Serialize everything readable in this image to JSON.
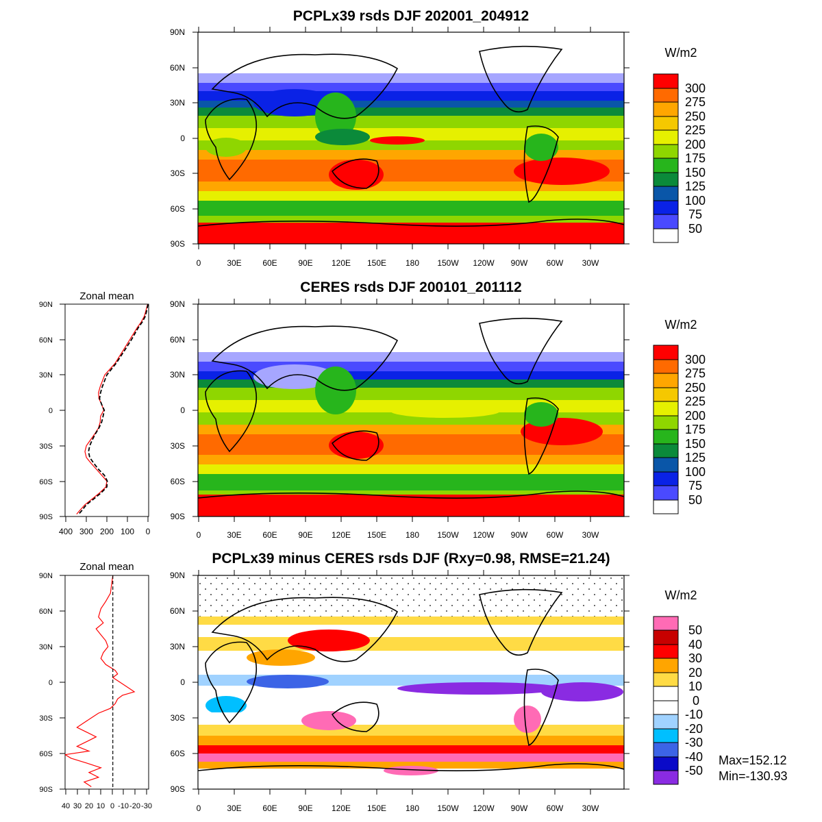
{
  "palettes": {
    "absolute": [
      "#ffffff",
      "#a6a6ff",
      "#4a4aff",
      "#0a22e6",
      "#0a56a8",
      "#0b8a3a",
      "#27b51c",
      "#8fd600",
      "#e6f000",
      "#f5c800",
      "#ffa600",
      "#ff6a00",
      "#ff0000"
    ],
    "difference": [
      "#8a2be2",
      "#0a0ac8",
      "#3c64e6",
      "#00bfff",
      "#a0d2ff",
      "#ffffff",
      "#ffffff",
      "#ffdb45",
      "#ffa500",
      "#ff0000",
      "#c80000",
      "#ff6bb5"
    ],
    "zonal_model": "#ff0000",
    "zonal_obs": "#000000"
  },
  "chart_data": [
    {
      "type": "heatmap",
      "title": "PCPLx39 rsds DJF 202001_204912",
      "x_tick_labels": [
        "0",
        "30E",
        "60E",
        "90E",
        "120E",
        "150E",
        "180",
        "150W",
        "120W",
        "90W",
        "60W",
        "30W"
      ],
      "y_tick_labels": [
        "90N",
        "60N",
        "30N",
        "0",
        "30S",
        "60S",
        "90S"
      ],
      "xlim": [
        0,
        360
      ],
      "ylim": [
        -90,
        90
      ],
      "colorbar_unit": "W/m2",
      "colorbar_labels": [
        "300",
        "275",
        "250",
        "225",
        "200",
        "175",
        "150",
        "125",
        "100",
        "75",
        "50"
      ],
      "colorbar_levels": [
        50,
        75,
        100,
        125,
        150,
        175,
        200,
        225,
        250,
        275,
        300
      ],
      "zonal_mean_profile": {
        "lat": [
          90,
          75,
          60,
          50,
          40,
          30,
          20,
          10,
          0,
          -10,
          -20,
          -30,
          -40,
          -50,
          -60,
          -70,
          -80,
          -88
        ],
        "values": [
          2,
          30,
          80,
          115,
          165,
          210,
          230,
          245,
          215,
          240,
          265,
          295,
          295,
          250,
          205,
          245,
          300,
          340
        ]
      }
    },
    {
      "type": "heatmap",
      "title": "CERES rsds DJF 200101_201112",
      "x_tick_labels": [
        "0",
        "30E",
        "60E",
        "90E",
        "120E",
        "150E",
        "180",
        "150W",
        "120W",
        "90W",
        "60W",
        "30W"
      ],
      "y_tick_labels": [
        "90N",
        "60N",
        "30N",
        "0",
        "30S",
        "60S",
        "90S"
      ],
      "xlim": [
        0,
        360
      ],
      "ylim": [
        -90,
        90
      ],
      "colorbar_unit": "W/m2",
      "colorbar_labels": [
        "300",
        "275",
        "250",
        "225",
        "200",
        "175",
        "150",
        "125",
        "100",
        "75",
        "50"
      ],
      "colorbar_levels": [
        50,
        75,
        100,
        125,
        150,
        175,
        200,
        225,
        250,
        275,
        300
      ],
      "zonal_mean_profile": {
        "lat": [
          90,
          75,
          60,
          50,
          40,
          30,
          20,
          10,
          0,
          -10,
          -20,
          -30,
          -40,
          -50,
          -60,
          -70,
          -80,
          -88
        ],
        "values": [
          2,
          25,
          70,
          110,
          155,
          200,
          222,
          240,
          210,
          230,
          260,
          280,
          285,
          240,
          200,
          240,
          290,
          325
        ]
      }
    },
    {
      "type": "line",
      "title": "Zonal mean",
      "x_tick_labels": [
        "400",
        "300",
        "200",
        "100",
        "0"
      ],
      "y_tick_labels": [
        "90N",
        "60N",
        "30N",
        "0",
        "30S",
        "60S",
        "90S"
      ],
      "xlim": [
        400,
        0
      ],
      "ylim": [
        -90,
        90
      ],
      "series": [
        {
          "y": [
            90,
            80,
            75,
            70,
            60,
            50,
            40,
            30,
            20,
            15,
            10,
            5,
            0,
            -5,
            -10,
            -15,
            -20,
            -25,
            -30,
            -35,
            -40,
            -45,
            -50,
            -55,
            -60,
            -65,
            -70,
            -75,
            -80,
            -85,
            -88
          ],
          "x": [
            5,
            20,
            35,
            55,
            90,
            125,
            160,
            210,
            232,
            240,
            238,
            225,
            215,
            230,
            232,
            240,
            258,
            278,
            298,
            305,
            298,
            275,
            250,
            225,
            200,
            205,
            235,
            270,
            305,
            330,
            345
          ]
        },
        {
          "y": [
            90,
            80,
            75,
            70,
            60,
            50,
            40,
            30,
            20,
            15,
            10,
            5,
            0,
            -5,
            -10,
            -15,
            -20,
            -25,
            -30,
            -35,
            -40,
            -45,
            -50,
            -55,
            -60,
            -65,
            -70,
            -75,
            -80,
            -85,
            -88
          ],
          "x": [
            3,
            15,
            30,
            50,
            82,
            118,
            155,
            200,
            222,
            230,
            235,
            225,
            212,
            218,
            225,
            238,
            255,
            270,
            282,
            288,
            282,
            262,
            240,
            212,
            198,
            200,
            228,
            262,
            298,
            320,
            335
          ]
        }
      ]
    },
    {
      "type": "heatmap",
      "title": "PCPLx39 minus CERES rsds DJF (Rxy=0.98, RMSE=21.24)",
      "x_tick_labels": [
        "0",
        "30E",
        "60E",
        "90E",
        "120E",
        "150E",
        "180",
        "150W",
        "120W",
        "90W",
        "60W",
        "30W"
      ],
      "y_tick_labels": [
        "90N",
        "60N",
        "30N",
        "0",
        "30S",
        "60S",
        "90S"
      ],
      "xlim": [
        0,
        360
      ],
      "ylim": [
        -90,
        90
      ],
      "colorbar_unit": "W/m2",
      "colorbar_labels": [
        "50",
        "40",
        "30",
        "20",
        "10",
        "0",
        "-10",
        "-20",
        "-30",
        "-40",
        "-50"
      ],
      "colorbar_levels": [
        -50,
        -40,
        -30,
        -20,
        -10,
        0,
        10,
        20,
        30,
        40,
        50
      ],
      "max_label": "Max=152.12",
      "min_label": "Min=-130.93"
    },
    {
      "type": "line",
      "title": "Zonal mean",
      "x_tick_labels": [
        "40",
        "30",
        "20",
        "10",
        "0",
        "-10",
        "-20",
        "-30"
      ],
      "y_tick_labels": [
        "90N",
        "60N",
        "30N",
        "0",
        "30S",
        "60S",
        "90S"
      ],
      "xlim": [
        40,
        -30
      ],
      "ylim": [
        -90,
        90
      ],
      "series": [
        {
          "y": [
            90,
            75,
            68,
            62,
            55,
            50,
            45,
            40,
            35,
            30,
            25,
            20,
            15,
            10,
            7,
            4,
            0,
            -4,
            -8,
            -11,
            -14,
            -18,
            -22,
            -26,
            -30,
            -34,
            -38,
            -42,
            -46,
            -50,
            -54,
            -58,
            -61,
            -64,
            -68,
            -72,
            -76,
            -80,
            -84,
            -88
          ],
          "x": [
            0,
            2,
            6,
            10,
            12,
            8,
            14,
            10,
            6,
            4,
            8,
            10,
            6,
            -2,
            -4,
            0,
            -6,
            -12,
            -18,
            -8,
            -4,
            -2,
            2,
            12,
            18,
            24,
            30,
            22,
            14,
            22,
            30,
            20,
            40,
            35,
            22,
            10,
            20,
            12,
            24,
            18
          ]
        },
        {
          "y": [
            90,
            -90
          ],
          "x": [
            0,
            0
          ]
        }
      ]
    }
  ]
}
